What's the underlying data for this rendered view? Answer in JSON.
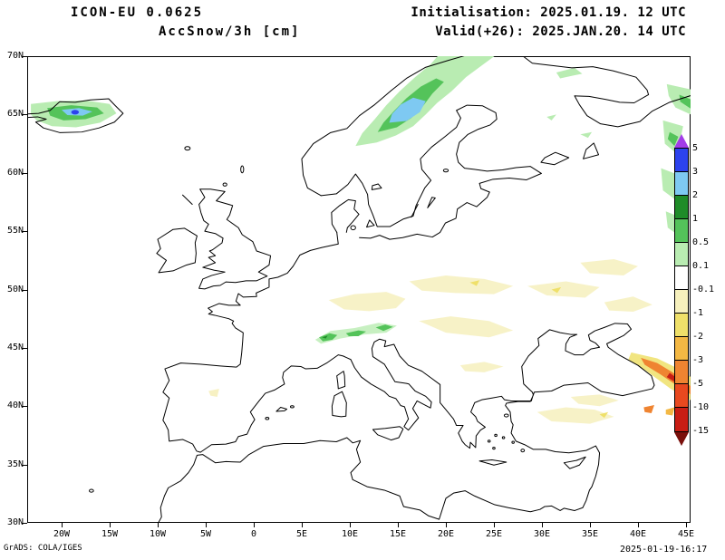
{
  "header": {
    "model": "ICON-EU 0.0625",
    "variable": "AccSnow/3h [cm]",
    "init": "Initialisation: 2025.01.19. 12 UTC",
    "valid": "Valid(+26): 2025.JAN.20. 14 UTC"
  },
  "footer": {
    "generator": "GrADS: COLA/IGES",
    "timestamp": "2025-01-19-16:17"
  },
  "map": {
    "lat_labels": [
      "70N",
      "65N",
      "60N",
      "55N",
      "50N",
      "45N",
      "40N",
      "35N",
      "30N"
    ],
    "lon_labels": [
      "20W",
      "15W",
      "10W",
      "5W",
      "0",
      "5E",
      "10E",
      "15E",
      "20E",
      "25E",
      "30E",
      "35E",
      "40E",
      "45E"
    ]
  },
  "colorbar": {
    "top_arrow_color": "#a23ce8",
    "bottom_arrow_color": "#7a100c",
    "cells": [
      "#2d43ee",
      "#7ec9f2",
      "#1f8c28",
      "#54c35a",
      "#b9ecb2",
      "#ffffff",
      "#f6f0bd",
      "#efe06a",
      "#f3b844",
      "#ef8431",
      "#e8491f",
      "#c81d14"
    ],
    "labels": [
      "5",
      "3",
      "2",
      "1",
      "0.5",
      "0.1",
      "-0.1",
      "-1",
      "-2",
      "-3",
      "-5",
      "-10",
      "-15"
    ]
  },
  "visible_features": [
    {
      "region": "Iceland",
      "shading": "green patch with light-blue core"
    },
    {
      "region": "Scandinavian mountains",
      "shading": "green patch with light-blue core"
    },
    {
      "region": "NW Russia near right edge",
      "shading": "light green stripe patches"
    },
    {
      "region": "Alps",
      "shading": "small green patches"
    },
    {
      "region": "Central and Eastern Europe",
      "shading": "pale yellow patches"
    },
    {
      "region": "Anatolia",
      "shading": "pale yellow patches"
    },
    {
      "region": "Caucasus",
      "shading": "orange and red maximum"
    }
  ]
}
